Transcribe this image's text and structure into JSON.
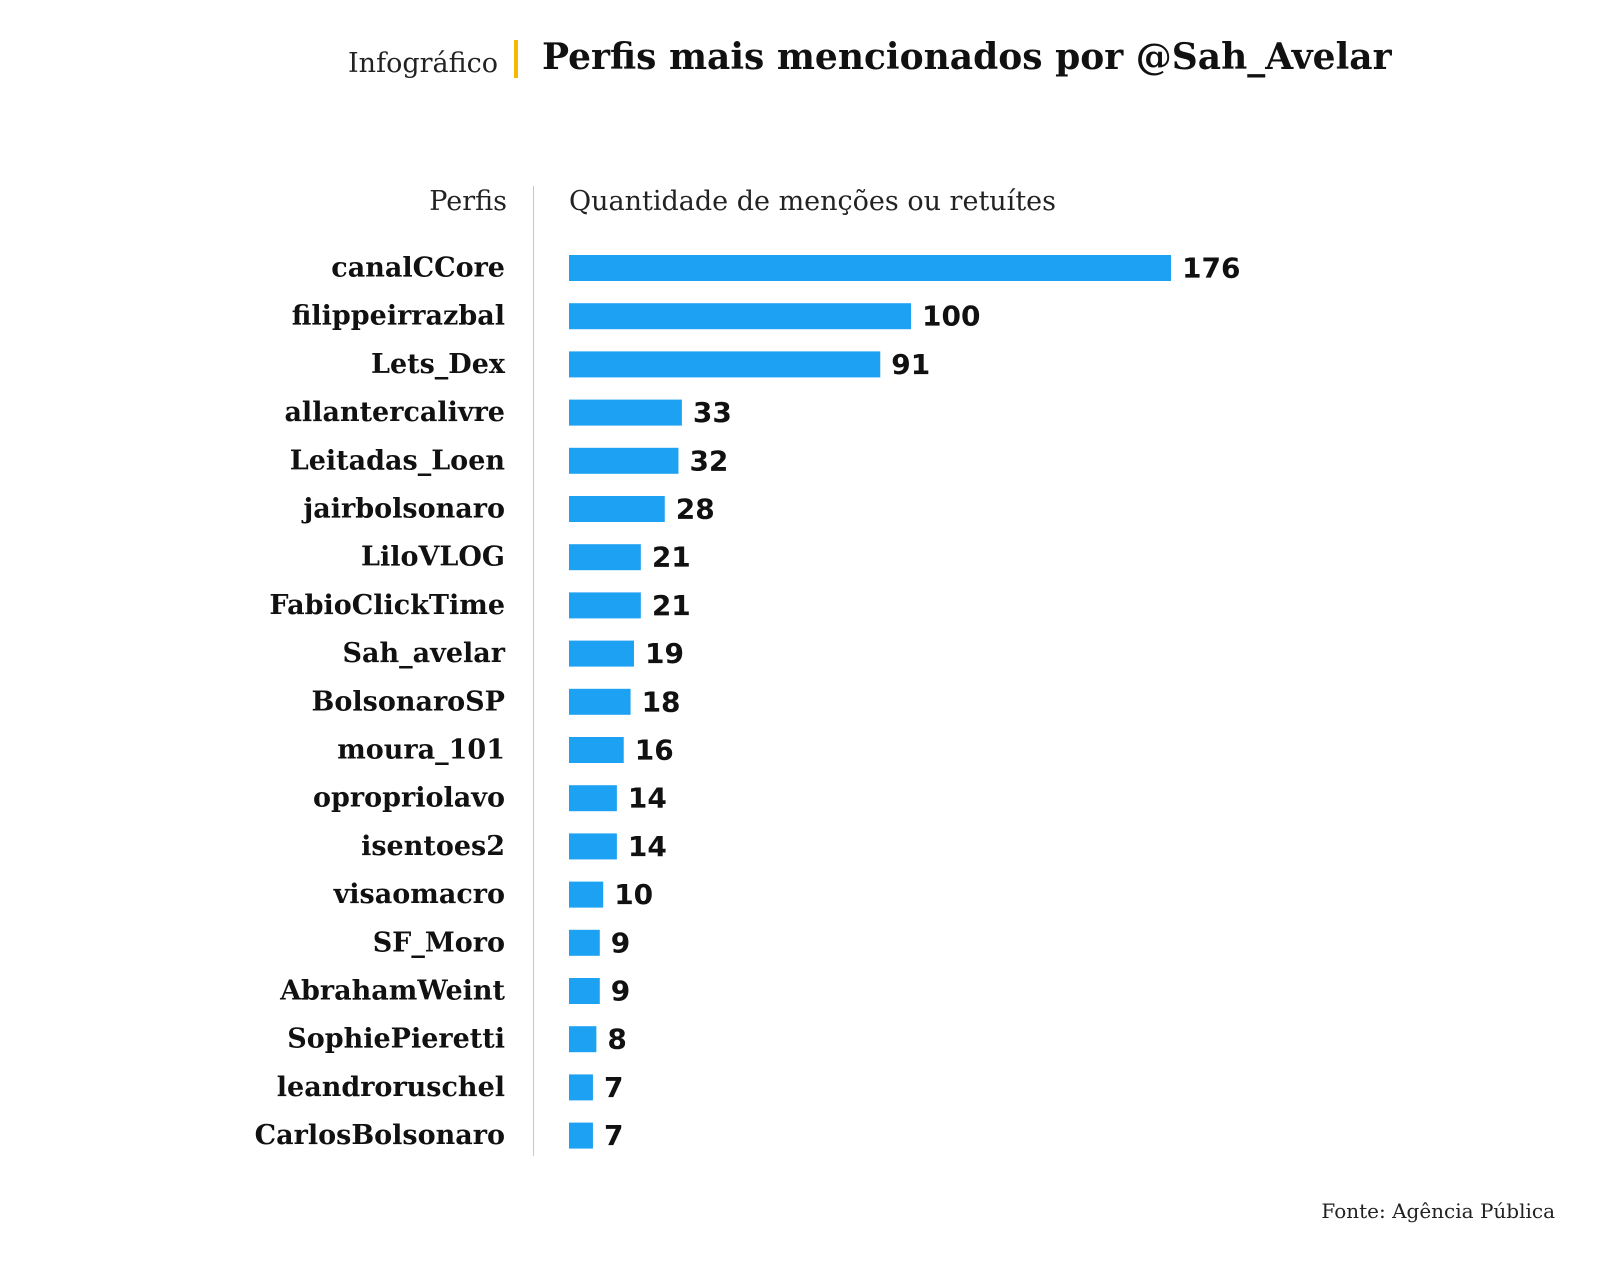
{
  "header": {
    "kicker": "Infográfico",
    "title": "Perfis mais mencionados por @Sah_Avelar",
    "accent_color": "#f5b800"
  },
  "columns": {
    "left": "Perfis",
    "right": "Quantidade de menções ou retuítes"
  },
  "footer": {
    "source": "Fonte: Agência Pública"
  },
  "chart_data": {
    "type": "bar",
    "orientation": "horizontal",
    "bar_color": "#1da1f2",
    "categories": [
      "canalCCore",
      "filippeirrazbal",
      "Lets_Dex",
      "allantercalivre",
      "Leitadas_Loen",
      "jairbolsonaro",
      "LiloVLOG",
      "FabioClickTime",
      "Sah_avelar",
      "BolsonaroSP",
      "moura_101",
      "opropriolavo",
      "isentoes2",
      "visaomacro",
      "SF_Moro",
      "AbrahamWeint",
      "SophiePieretti",
      "leandroruschel",
      "CarlosBolsonaro"
    ],
    "values": [
      176,
      100,
      91,
      33,
      32,
      28,
      21,
      21,
      19,
      18,
      16,
      14,
      14,
      10,
      9,
      9,
      8,
      7,
      7
    ],
    "xlabel": "Quantidade de menções ou retuítes",
    "ylabel": "Perfis",
    "xlim": [
      0,
      176
    ],
    "grid": false,
    "legend": "none"
  }
}
